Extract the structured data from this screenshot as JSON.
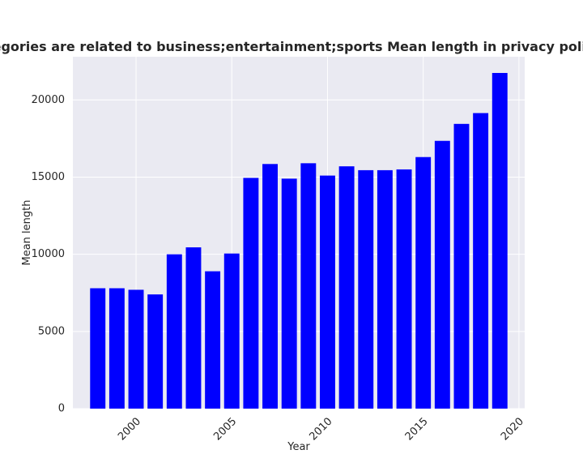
{
  "chart_data": {
    "type": "bar",
    "title": "When categories are related to business;entertainment;sports Mean length in privacy policies by year",
    "xlabel": "Year",
    "ylabel": "Mean length",
    "x": [
      1998,
      1999,
      2000,
      2001,
      2002,
      2003,
      2004,
      2005,
      2006,
      2007,
      2008,
      2009,
      2010,
      2011,
      2012,
      2013,
      2014,
      2015,
      2016,
      2017,
      2018,
      2019
    ],
    "values": [
      7800,
      7800,
      7700,
      7400,
      10000,
      10450,
      8900,
      10050,
      14950,
      15850,
      14900,
      15900,
      15100,
      15700,
      15450,
      15450,
      15500,
      16300,
      17350,
      18450,
      19150,
      21750
    ],
    "xlim": [
      1996.7,
      2020.3
    ],
    "ylim": [
      0,
      22800
    ],
    "xticks": [
      2000,
      2005,
      2010,
      2015,
      2020
    ],
    "xtick_labels": [
      "2000",
      "2005",
      "2010",
      "2015",
      "2020"
    ],
    "yticks": [
      0,
      5000,
      10000,
      15000,
      20000
    ],
    "ytick_labels": [
      "0",
      "5000",
      "10000",
      "15000",
      "20000"
    ],
    "grid": true,
    "colors": {
      "bar": "#0000ff",
      "plot_bg": "#eaeaf2",
      "grid": "#ffffff",
      "text": "#262626"
    }
  }
}
